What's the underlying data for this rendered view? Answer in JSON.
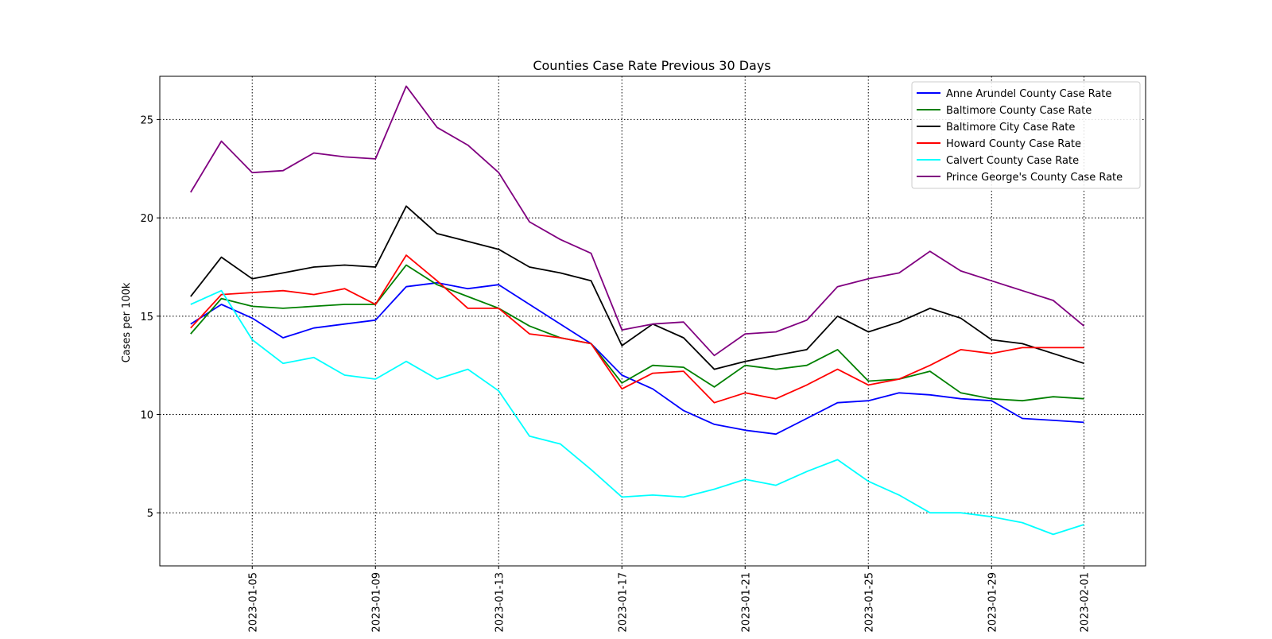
{
  "chart_data": {
    "type": "line",
    "title": "Counties Case Rate Previous 30 Days",
    "xlabel": "",
    "ylabel": "Cases per 100k",
    "x": [
      "2023-01-03",
      "2023-01-04",
      "2023-01-05",
      "2023-01-06",
      "2023-01-07",
      "2023-01-08",
      "2023-01-09",
      "2023-01-10",
      "2023-01-11",
      "2023-01-12",
      "2023-01-13",
      "2023-01-14",
      "2023-01-15",
      "2023-01-16",
      "2023-01-17",
      "2023-01-18",
      "2023-01-19",
      "2023-01-20",
      "2023-01-21",
      "2023-01-22",
      "2023-01-23",
      "2023-01-24",
      "2023-01-25",
      "2023-01-26",
      "2023-01-27",
      "2023-01-28",
      "2023-01-29",
      "2023-01-30",
      "2023-01-31",
      "2023-02-01"
    ],
    "xlim": [
      "2023-01-02",
      "2023-02-03"
    ],
    "xticks": [
      "2023-01-05",
      "2023-01-09",
      "2023-01-13",
      "2023-01-17",
      "2023-01-21",
      "2023-01-25",
      "2023-01-29",
      "2023-02-01"
    ],
    "ylim": [
      2.3,
      27.2
    ],
    "yticks": [
      5,
      10,
      15,
      20,
      25
    ],
    "grid": true,
    "legend_position": "top-right",
    "series": [
      {
        "name": "Anne Arundel County Case Rate",
        "color": "#0000ff",
        "values": [
          14.6,
          15.6,
          14.9,
          13.9,
          14.4,
          14.6,
          14.8,
          16.5,
          16.7,
          16.4,
          16.6,
          15.6,
          14.6,
          13.6,
          12.0,
          11.3,
          10.2,
          9.5,
          9.2,
          9.0,
          9.8,
          10.6,
          10.7,
          11.1,
          11.0,
          10.8,
          10.7,
          9.8,
          9.7,
          9.6
        ]
      },
      {
        "name": "Baltimore County Case Rate",
        "color": "#008000",
        "values": [
          14.1,
          15.9,
          15.5,
          15.4,
          15.5,
          15.6,
          15.6,
          17.6,
          16.6,
          16.0,
          15.4,
          14.5,
          13.9,
          13.6,
          11.6,
          12.5,
          12.4,
          11.4,
          12.5,
          12.3,
          12.5,
          13.3,
          11.7,
          11.8,
          12.2,
          11.1,
          10.8,
          10.7,
          10.9,
          10.8
        ]
      },
      {
        "name": "Baltimore City Case Rate",
        "color": "#000000",
        "values": [
          16.0,
          18.0,
          16.9,
          17.2,
          17.5,
          17.6,
          17.5,
          20.6,
          19.2,
          18.8,
          18.4,
          17.5,
          17.2,
          16.8,
          13.5,
          14.6,
          13.9,
          12.3,
          12.7,
          13.0,
          13.3,
          15.0,
          14.2,
          14.7,
          15.4,
          14.9,
          13.8,
          13.6,
          13.1,
          12.6
        ]
      },
      {
        "name": "Howard County Case Rate",
        "color": "#ff0000",
        "values": [
          14.4,
          16.1,
          16.2,
          16.3,
          16.1,
          16.4,
          15.6,
          18.1,
          16.8,
          15.4,
          15.4,
          14.1,
          13.9,
          13.6,
          11.3,
          12.1,
          12.2,
          10.6,
          11.1,
          10.8,
          11.5,
          12.3,
          11.5,
          11.8,
          12.5,
          13.3,
          13.1,
          13.4,
          13.4,
          13.4
        ]
      },
      {
        "name": "Calvert County Case Rate",
        "color": "#00ffff",
        "values": [
          15.6,
          16.3,
          13.8,
          12.6,
          12.9,
          12.0,
          11.8,
          12.7,
          11.8,
          12.3,
          11.2,
          8.9,
          8.5,
          7.2,
          5.8,
          5.9,
          5.8,
          6.2,
          6.7,
          6.4,
          7.1,
          7.7,
          6.6,
          5.9,
          5.0,
          5.0,
          4.8,
          4.5,
          3.9,
          4.4
        ]
      },
      {
        "name": "Prince George's County Case Rate",
        "color": "#800080",
        "values": [
          21.3,
          23.9,
          22.3,
          22.4,
          23.3,
          23.1,
          23.0,
          26.7,
          24.6,
          23.7,
          22.3,
          19.8,
          18.9,
          18.2,
          14.3,
          14.6,
          14.7,
          13.0,
          14.1,
          14.2,
          14.8,
          16.5,
          16.9,
          17.2,
          18.3,
          17.3,
          16.8,
          16.3,
          15.8,
          14.5
        ]
      }
    ]
  }
}
